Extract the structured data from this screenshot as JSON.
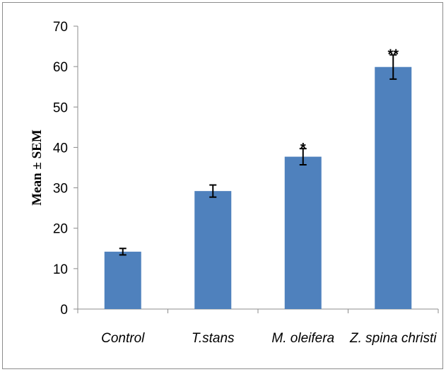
{
  "chart_data": {
    "type": "bar",
    "categories": [
      "Control",
      "T.stans",
      "M. oleifera",
      "Z. spina christi"
    ],
    "values": [
      14.2,
      29.2,
      37.7,
      59.9
    ],
    "errors": [
      0.8,
      1.5,
      2.0,
      3.0
    ],
    "annotations": [
      "",
      "",
      "*",
      "**"
    ],
    "ylabel": "Mean ± SEM",
    "ylim": [
      0,
      70
    ],
    "yticks": [
      0,
      10,
      20,
      30,
      40,
      50,
      60,
      70
    ],
    "bar_color": "#4f81bd",
    "grid": false,
    "legend": false
  }
}
